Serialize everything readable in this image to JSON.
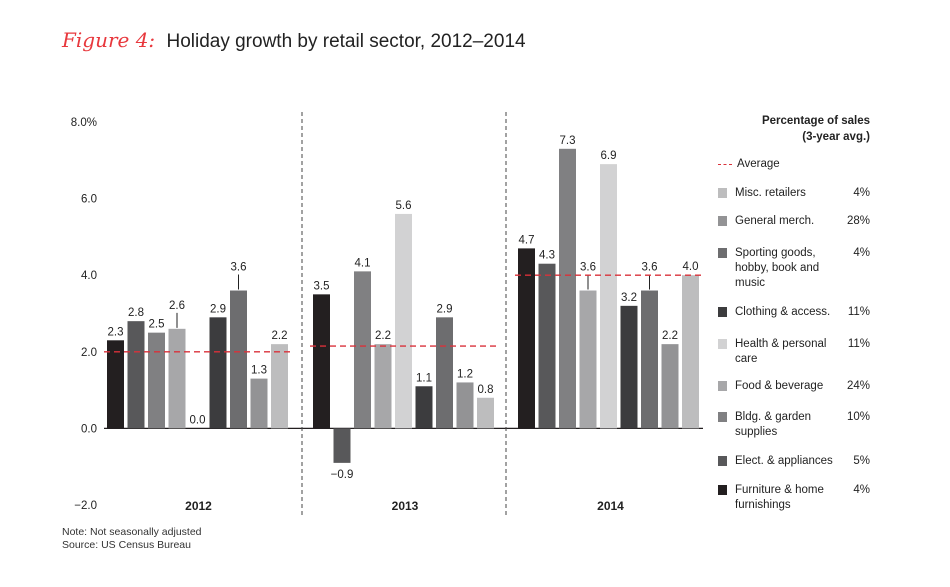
{
  "title": {
    "figure_label": "Figure 4:",
    "text": "Holiday growth by retail sector, 2012–2014"
  },
  "notes": [
    "Note: Not seasonally adjusted",
    "Source: US Census Bureau"
  ],
  "legend": {
    "heading": [
      "Percentage of sales",
      "(3-year avg.)"
    ],
    "average_label": "Average",
    "average_color": "#d9313a"
  },
  "chart_data": {
    "type": "bar",
    "title": "Holiday growth by retail sector, 2012–2014",
    "xlabel": "",
    "ylabel": "",
    "ylim": [
      -2.0,
      8.0
    ],
    "yticks": [
      -2.0,
      0.0,
      2.0,
      4.0,
      6.0,
      8.0
    ],
    "ytick_labels": [
      "−2.0",
      "0.0",
      "2.0",
      "4.0",
      "6.0",
      "8.0%"
    ],
    "categories": [
      "2012",
      "2013",
      "2014"
    ],
    "averages": [
      2.0,
      2.15,
      4.0
    ],
    "series": [
      {
        "name": "Furniture & home furnishings",
        "share": "4%",
        "color": "#231f20",
        "values": [
          2.3,
          3.5,
          4.7
        ],
        "labels": [
          "2.3",
          "3.5",
          "4.7"
        ]
      },
      {
        "name": "Elect. & appliances",
        "share": "5%",
        "color": "#58585a",
        "values": [
          2.8,
          -0.9,
          4.3
        ],
        "labels": [
          "2.8",
          "−0.9",
          "4.3"
        ]
      },
      {
        "name": "Bldg. & garden supplies",
        "share": "10%",
        "color": "#808082",
        "values": [
          2.5,
          4.1,
          7.3
        ],
        "labels": [
          "2.5",
          "4.1",
          "7.3"
        ]
      },
      {
        "name": "Food & beverage",
        "share": "24%",
        "color": "#a7a7a9",
        "values": [
          2.6,
          2.2,
          3.6
        ],
        "labels": [
          "2.6",
          "2.2",
          "3.6"
        ]
      },
      {
        "name": "Health & personal care",
        "share": "11%",
        "color": "#d2d2d3",
        "values": [
          0.0,
          5.6,
          6.9
        ],
        "labels": [
          "",
          "5.6",
          "6.9"
        ]
      },
      {
        "name": "Clothing & access.",
        "share": "11%",
        "color": "#3c3c3e",
        "values": [
          2.9,
          1.1,
          3.2
        ],
        "labels": [
          "2.9",
          "1.1",
          "3.2"
        ]
      },
      {
        "name": "Sporting goods, hobby, book and music",
        "share": "4%",
        "color": "#6d6d6f",
        "values": [
          3.6,
          2.9,
          3.6
        ],
        "labels": [
          "3.6",
          "2.9",
          "3.6"
        ]
      },
      {
        "name": "General merch.",
        "share": "28%",
        "color": "#939395",
        "values": [
          1.3,
          1.2,
          2.2
        ],
        "labels": [
          "1.3",
          "1.2",
          "2.2"
        ]
      },
      {
        "name": "Misc. retailers",
        "share": "4%",
        "color": "#bdbdbe",
        "values": [
          2.2,
          0.8,
          4.0
        ],
        "labels": [
          "2.2",
          "0.8",
          "4.0"
        ]
      }
    ],
    "extra_labels": [
      "0.0"
    ],
    "legend_order": [
      "Misc. retailers",
      "General merch.",
      "Sporting goods, hobby, book and music",
      "Clothing & access.",
      "Health & personal care",
      "Food & beverage",
      "Bldg. & garden supplies",
      "Elect. & appliances",
      "Furniture & home furnishings"
    ],
    "legend_labels": {
      "Misc. retailers": [
        "Misc. retailers"
      ],
      "General merch.": [
        "General merch."
      ],
      "Sporting goods, hobby, book and music": [
        "Sporting goods,",
        "hobby, book and",
        "music"
      ],
      "Clothing & access.": [
        "Clothing & access."
      ],
      "Health & personal care": [
        "Health & personal",
        "care"
      ],
      "Food & beverage": [
        "Food & beverage"
      ],
      "Bldg. & garden supplies": [
        "Bldg. & garden",
        "supplies"
      ],
      "Elect. & appliances": [
        "Elect. & appliances"
      ],
      "Furniture & home furnishings": [
        "Furniture & home",
        "furnishings"
      ]
    },
    "grid": false,
    "legend_position": "right"
  }
}
